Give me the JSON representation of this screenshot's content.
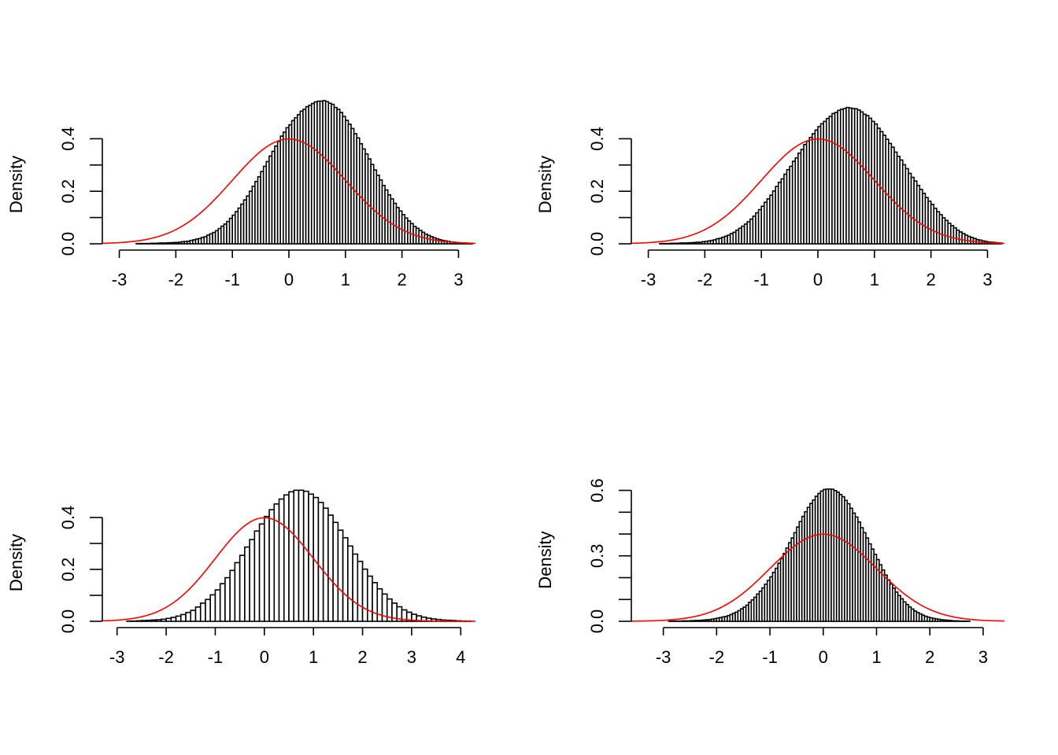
{
  "chart_data": [
    {
      "type": "histogram",
      "ylabel": "Density",
      "xlim": [
        -3.3,
        3.3
      ],
      "ylim": [
        0,
        0.5
      ],
      "x_ticks": [
        "-3",
        "-2",
        "-1",
        "0",
        "1",
        "2",
        "3"
      ],
      "y_ticks": [
        "0.0",
        "0.2",
        "0.4"
      ],
      "y_minor_step": 0.1,
      "bin_width": 0.05,
      "bin_start": -3.0,
      "overlay": {
        "name": "normal density",
        "mean": 0,
        "sd": 1,
        "color": "#ff0000"
      },
      "values": [
        0.0,
        0.0,
        0.0,
        0.0,
        0.0,
        0.0,
        0.001,
        0.001,
        0.001,
        0.001,
        0.001,
        0.002,
        0.002,
        0.002,
        0.003,
        0.003,
        0.003,
        0.004,
        0.004,
        0.005,
        0.005,
        0.006,
        0.008,
        0.009,
        0.01,
        0.013,
        0.015,
        0.018,
        0.02,
        0.024,
        0.027,
        0.033,
        0.038,
        0.043,
        0.05,
        0.058,
        0.067,
        0.075,
        0.085,
        0.097,
        0.109,
        0.122,
        0.136,
        0.151,
        0.167,
        0.182,
        0.2,
        0.219,
        0.237,
        0.255,
        0.275,
        0.295,
        0.313,
        0.334,
        0.352,
        0.372,
        0.39,
        0.41,
        0.425,
        0.442,
        0.453,
        0.469,
        0.48,
        0.492,
        0.505,
        0.512,
        0.522,
        0.527,
        0.534,
        0.54,
        0.543,
        0.543,
        0.545,
        0.541,
        0.535,
        0.531,
        0.519,
        0.512,
        0.5,
        0.485,
        0.47,
        0.455,
        0.439,
        0.419,
        0.403,
        0.381,
        0.361,
        0.342,
        0.323,
        0.302,
        0.281,
        0.261,
        0.243,
        0.222,
        0.205,
        0.186,
        0.171,
        0.154,
        0.138,
        0.125,
        0.111,
        0.098,
        0.087,
        0.077,
        0.066,
        0.059,
        0.051,
        0.044,
        0.037,
        0.032,
        0.027,
        0.023,
        0.019,
        0.016,
        0.013,
        0.011,
        0.009,
        0.007,
        0.006,
        0.005,
        0.004,
        0.003,
        0.003,
        0.002,
        0.002
      ]
    },
    {
      "type": "histogram",
      "ylabel": "Density",
      "xlim": [
        -3.3,
        3.3
      ],
      "ylim": [
        0,
        0.5
      ],
      "x_ticks": [
        "-3",
        "-2",
        "-1",
        "0",
        "1",
        "2",
        "3"
      ],
      "y_ticks": [
        "0.0",
        "0.2",
        "0.4"
      ],
      "y_minor_step": 0.1,
      "bin_width": 0.05,
      "bin_start": -3.0,
      "overlay": {
        "name": "normal density",
        "mean": 0,
        "sd": 1,
        "color": "#ff0000"
      },
      "values": [
        0.0,
        0.0,
        0.0,
        0.0,
        0.001,
        0.001,
        0.001,
        0.001,
        0.002,
        0.002,
        0.002,
        0.003,
        0.003,
        0.003,
        0.004,
        0.004,
        0.005,
        0.006,
        0.006,
        0.008,
        0.009,
        0.011,
        0.013,
        0.015,
        0.019,
        0.021,
        0.025,
        0.029,
        0.033,
        0.039,
        0.044,
        0.052,
        0.059,
        0.067,
        0.075,
        0.084,
        0.094,
        0.105,
        0.118,
        0.13,
        0.143,
        0.158,
        0.171,
        0.185,
        0.201,
        0.218,
        0.234,
        0.247,
        0.265,
        0.282,
        0.295,
        0.314,
        0.327,
        0.345,
        0.359,
        0.378,
        0.391,
        0.405,
        0.419,
        0.433,
        0.446,
        0.457,
        0.466,
        0.477,
        0.485,
        0.496,
        0.5,
        0.508,
        0.512,
        0.515,
        0.519,
        0.517,
        0.515,
        0.514,
        0.509,
        0.502,
        0.493,
        0.488,
        0.478,
        0.466,
        0.456,
        0.44,
        0.427,
        0.413,
        0.398,
        0.382,
        0.368,
        0.349,
        0.333,
        0.319,
        0.301,
        0.286,
        0.268,
        0.253,
        0.239,
        0.222,
        0.207,
        0.192,
        0.176,
        0.162,
        0.15,
        0.135,
        0.122,
        0.111,
        0.099,
        0.089,
        0.078,
        0.069,
        0.061,
        0.052,
        0.045,
        0.039,
        0.033,
        0.028,
        0.024,
        0.02,
        0.016,
        0.014,
        0.011,
        0.009,
        0.007,
        0.006,
        0.005,
        0.004,
        0.003
      ]
    },
    {
      "type": "histogram",
      "ylabel": "Density",
      "xlim": [
        -3.3,
        4.3
      ],
      "ylim": [
        0,
        0.5
      ],
      "x_ticks": [
        "-3",
        "-2",
        "-1",
        "0",
        "1",
        "2",
        "3",
        "4"
      ],
      "y_ticks": [
        "0.0",
        "0.2",
        "0.4"
      ],
      "y_minor_step": 0.1,
      "bin_width": 0.1,
      "bin_start": -3.0,
      "overlay": {
        "name": "normal density",
        "mean": 0,
        "sd": 1,
        "color": "#ff0000"
      },
      "values": [
        0.0,
        0.0,
        0.001,
        0.001,
        0.002,
        0.003,
        0.004,
        0.005,
        0.006,
        0.008,
        0.011,
        0.015,
        0.02,
        0.026,
        0.034,
        0.042,
        0.055,
        0.07,
        0.084,
        0.102,
        0.121,
        0.145,
        0.168,
        0.196,
        0.226,
        0.254,
        0.286,
        0.315,
        0.348,
        0.375,
        0.404,
        0.43,
        0.452,
        0.471,
        0.487,
        0.499,
        0.505,
        0.505,
        0.501,
        0.49,
        0.477,
        0.458,
        0.436,
        0.409,
        0.381,
        0.351,
        0.322,
        0.29,
        0.259,
        0.231,
        0.201,
        0.174,
        0.149,
        0.125,
        0.105,
        0.086,
        0.07,
        0.056,
        0.044,
        0.035,
        0.027,
        0.021,
        0.016,
        0.012,
        0.009,
        0.007,
        0.005,
        0.004,
        0.003,
        0.002,
        0.001,
        0.001
      ]
    },
    {
      "type": "histogram",
      "ylabel": "Density",
      "xlim": [
        -3.6,
        3.4
      ],
      "ylim": [
        0,
        0.62
      ],
      "x_ticks": [
        "-3",
        "-2",
        "-1",
        "0",
        "1",
        "2",
        "3"
      ],
      "y_ticks": [
        "0.0",
        "0.3",
        "0.6"
      ],
      "y_minor_step": 0.1,
      "bin_width": 0.05,
      "bin_start": -3.5,
      "overlay": {
        "name": "normal density",
        "mean": 0,
        "sd": 1,
        "color": "#ff0000"
      },
      "values": [
        0.0,
        0.0,
        0.0,
        0.0,
        0.0,
        0.0,
        0.0,
        0.0,
        0.0,
        0.0,
        0.0,
        0.0,
        0.001,
        0.001,
        0.001,
        0.001,
        0.001,
        0.002,
        0.002,
        0.002,
        0.003,
        0.003,
        0.004,
        0.004,
        0.005,
        0.006,
        0.007,
        0.008,
        0.01,
        0.012,
        0.015,
        0.017,
        0.02,
        0.022,
        0.026,
        0.031,
        0.037,
        0.042,
        0.049,
        0.057,
        0.065,
        0.074,
        0.087,
        0.098,
        0.11,
        0.125,
        0.138,
        0.153,
        0.17,
        0.187,
        0.204,
        0.224,
        0.243,
        0.266,
        0.287,
        0.311,
        0.336,
        0.36,
        0.382,
        0.406,
        0.432,
        0.457,
        0.481,
        0.502,
        0.522,
        0.54,
        0.556,
        0.573,
        0.586,
        0.597,
        0.604,
        0.606,
        0.606,
        0.605,
        0.599,
        0.592,
        0.581,
        0.571,
        0.554,
        0.539,
        0.518,
        0.496,
        0.478,
        0.455,
        0.429,
        0.406,
        0.382,
        0.355,
        0.331,
        0.307,
        0.283,
        0.259,
        0.235,
        0.212,
        0.19,
        0.171,
        0.152,
        0.134,
        0.118,
        0.103,
        0.089,
        0.077,
        0.066,
        0.056,
        0.047,
        0.04,
        0.034,
        0.028,
        0.023,
        0.019,
        0.016,
        0.013,
        0.011,
        0.009,
        0.007,
        0.006,
        0.005,
        0.004,
        0.003,
        0.002,
        0.002,
        0.001,
        0.001,
        0.001,
        0.001,
        0.0,
        0.0,
        0.0,
        0.0,
        0.0,
        0.0,
        0.0,
        0.0,
        0.0
      ]
    }
  ]
}
